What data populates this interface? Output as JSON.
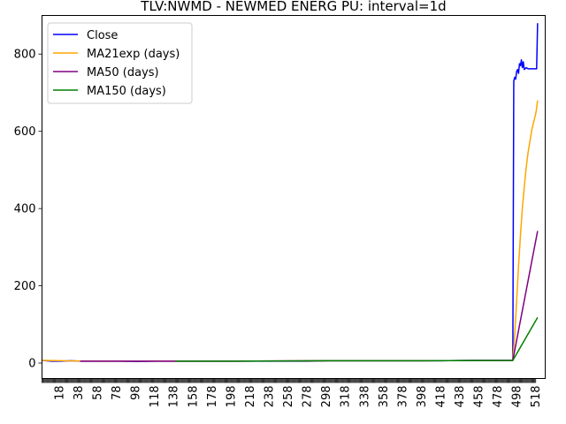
{
  "chart_data": {
    "type": "line",
    "title": "TLV:NWMD - NEWMED ENERG PU: interval=1d",
    "xlabel": "",
    "ylabel": "",
    "xlim": [
      0,
      528
    ],
    "ylim": [
      -40,
      900
    ],
    "y_ticks": [
      0,
      200,
      400,
      600,
      800
    ],
    "x_ticks": [
      18,
      38,
      58,
      78,
      98,
      118,
      138,
      158,
      178,
      198,
      218,
      238,
      258,
      278,
      298,
      318,
      338,
      358,
      378,
      398,
      418,
      438,
      458,
      478,
      498,
      518
    ],
    "grid": false,
    "legend_position": "top-left",
    "series": [
      {
        "name": "Close",
        "color": "#0000ff",
        "points": [
          [
            0,
            7
          ],
          [
            10,
            5
          ],
          [
            20,
            5
          ],
          [
            30,
            6
          ],
          [
            40,
            5
          ],
          [
            60,
            5
          ],
          [
            80,
            5
          ],
          [
            100,
            4
          ],
          [
            120,
            5
          ],
          [
            140,
            5
          ],
          [
            160,
            5
          ],
          [
            200,
            5
          ],
          [
            240,
            5
          ],
          [
            280,
            5
          ],
          [
            300,
            6
          ],
          [
            340,
            6
          ],
          [
            380,
            6
          ],
          [
            420,
            6
          ],
          [
            450,
            7
          ],
          [
            480,
            7
          ],
          [
            494,
            7
          ],
          [
            495,
            730
          ],
          [
            496,
            740
          ],
          [
            497,
            735
          ],
          [
            498,
            755
          ],
          [
            499,
            760
          ],
          [
            500,
            750
          ],
          [
            501,
            775
          ],
          [
            502,
            770
          ],
          [
            503,
            785
          ],
          [
            504,
            765
          ],
          [
            505,
            780
          ],
          [
            506,
            760
          ],
          [
            508,
            765
          ],
          [
            510,
            762
          ],
          [
            512,
            762
          ],
          [
            514,
            762
          ],
          [
            516,
            762
          ],
          [
            518,
            762
          ],
          [
            519,
            762
          ],
          [
            520,
            880
          ]
        ]
      },
      {
        "name": "MA21exp (days)",
        "color": "#ffa500",
        "points": [
          [
            0,
            7
          ],
          [
            20,
            6
          ],
          [
            50,
            5
          ],
          [
            100,
            5
          ],
          [
            200,
            5
          ],
          [
            300,
            6
          ],
          [
            400,
            6
          ],
          [
            494,
            7
          ],
          [
            496,
            75
          ],
          [
            498,
            160
          ],
          [
            500,
            250
          ],
          [
            502,
            330
          ],
          [
            504,
            400
          ],
          [
            506,
            455
          ],
          [
            508,
            505
          ],
          [
            510,
            545
          ],
          [
            512,
            575
          ],
          [
            514,
            605
          ],
          [
            516,
            625
          ],
          [
            518,
            645
          ],
          [
            519,
            660
          ],
          [
            520,
            680
          ]
        ]
      },
      {
        "name": "MA50 (days)",
        "color": "#800080",
        "points": [
          [
            40,
            5
          ],
          [
            100,
            5
          ],
          [
            200,
            5
          ],
          [
            300,
            6
          ],
          [
            400,
            6
          ],
          [
            494,
            7
          ],
          [
            520,
            342
          ]
        ]
      },
      {
        "name": "MA150 (days)",
        "color": "#008000",
        "points": [
          [
            140,
            5
          ],
          [
            200,
            5
          ],
          [
            300,
            6
          ],
          [
            400,
            6
          ],
          [
            494,
            7
          ],
          [
            520,
            118
          ]
        ]
      }
    ]
  }
}
